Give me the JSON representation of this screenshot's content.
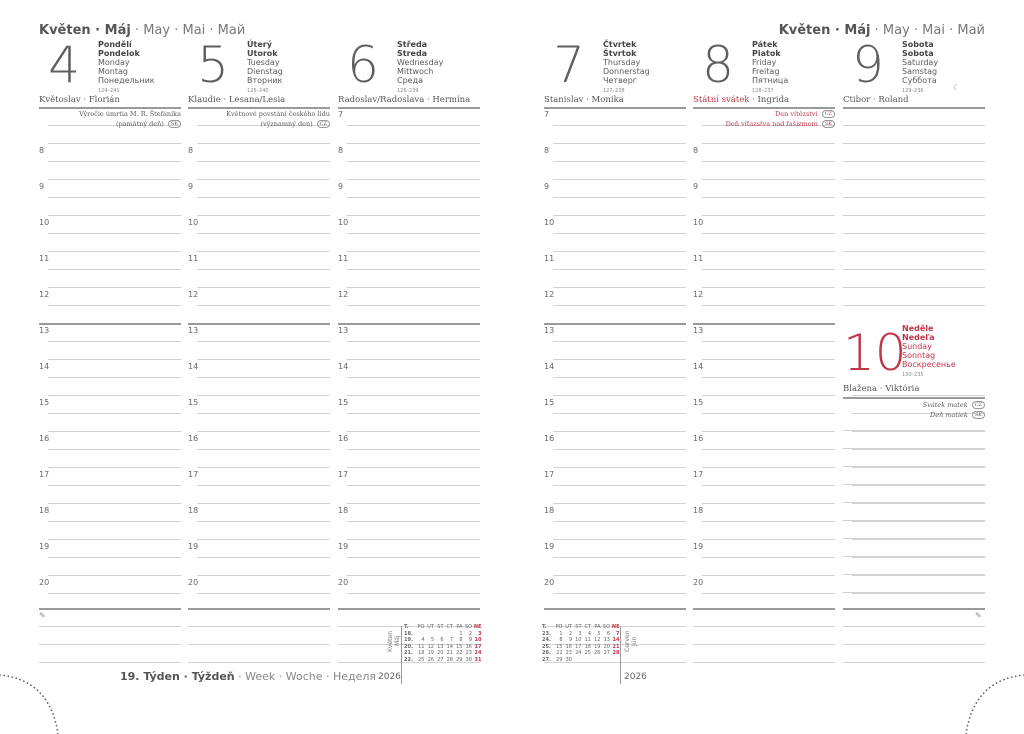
{
  "header": {
    "month_bold": "Květen · Máj",
    "month_rest": " · May · Mai · Май"
  },
  "week": {
    "bold": "19. Týden · Týždeň",
    "rest": " · Week · Woche · Неделя"
  },
  "colors": {
    "text": "#5a5a5a",
    "holiday": "#c0354a",
    "line": "#d2d2d2"
  },
  "days": [
    {
      "num": "4",
      "cz": "Pondělí",
      "sk": "Pondelok",
      "en": "Monday",
      "de": "Montag",
      "ru": "Понедельник",
      "count": "124–241",
      "nameday": "Květoslav · Florián",
      "holiday": false,
      "events": [
        {
          "text": "Výročie úmrtia M. R. Štefánika",
          "badge": ""
        },
        {
          "text": "(pamätný deň)",
          "badge": "SK"
        }
      ],
      "hours": [
        "",
        "8",
        "9",
        "10",
        "11",
        "12",
        "13",
        "14",
        "15",
        "16",
        "17",
        "18",
        "19",
        "20"
      ]
    },
    {
      "num": "5",
      "cz": "Úterý",
      "sk": "Utorok",
      "en": "Tuesday",
      "de": "Dienstag",
      "ru": "Вторник",
      "count": "125–240",
      "nameday": "Klaudie · Lesana/Lesia",
      "holiday": false,
      "events": [
        {
          "text": "Květnové povstání českého lidu",
          "badge": ""
        },
        {
          "text": "(významný den)",
          "badge": "CZ"
        }
      ],
      "hours": [
        "",
        "8",
        "9",
        "10",
        "11",
        "12",
        "13",
        "14",
        "15",
        "16",
        "17",
        "18",
        "19",
        "20"
      ]
    },
    {
      "num": "6",
      "cz": "Středa",
      "sk": "Streda",
      "en": "Wednesday",
      "de": "Mittwoch",
      "ru": "Среда",
      "count": "126–239",
      "nameday": "Radoslav/Radoslava · Hermína",
      "holiday": false,
      "events": [],
      "hours": [
        "7",
        "8",
        "9",
        "10",
        "11",
        "12",
        "13",
        "14",
        "15",
        "16",
        "17",
        "18",
        "19",
        "20"
      ]
    },
    {
      "num": "7",
      "cz": "Čtvrtek",
      "sk": "Štvrtok",
      "en": "Thursday",
      "de": "Donnerstag",
      "ru": "Четверг",
      "count": "127–238",
      "nameday": "Stanislav · Monika",
      "holiday": false,
      "events": [],
      "hours": [
        "7",
        "8",
        "9",
        "10",
        "11",
        "12",
        "13",
        "14",
        "15",
        "16",
        "17",
        "18",
        "19",
        "20"
      ]
    },
    {
      "num": "8",
      "cz": "Pátek",
      "sk": "Piatok",
      "en": "Friday",
      "de": "Freitag",
      "ru": "Пятница",
      "count": "128–237",
      "nameday_red": "Státní svátek",
      "nameday": " · Ingrida",
      "holiday": false,
      "events": [
        {
          "text": "Den vítězství",
          "badge": "CZ"
        },
        {
          "text": "Deň víťazstva nad fašizmom",
          "badge": "SK"
        }
      ],
      "hours": [
        "",
        "8",
        "9",
        "10",
        "11",
        "12",
        "13",
        "14",
        "15",
        "16",
        "17",
        "18",
        "19",
        "20"
      ]
    },
    {
      "num": "9",
      "cz": "Sobota",
      "sk": "Sobota",
      "en": "Saturday",
      "de": "Samstag",
      "ru": "Суббота",
      "count": "129–236",
      "nameday": "Ctibor · Roland",
      "holiday": false,
      "events": [],
      "hours": [],
      "moon": "☾"
    }
  ],
  "sunday": {
    "num": "10",
    "cz": "Neděle",
    "sk": "Nedeľa",
    "en": "Sunday",
    "de": "Sonntag",
    "ru": "Воскресенье",
    "count": "130–235",
    "nameday": "Blažena · Viktória",
    "events": [
      {
        "text": "Svátek matek",
        "badge": "CZ"
      },
      {
        "text": "Deň matiek",
        "badge": "SK"
      }
    ]
  },
  "mini_calendars": [
    {
      "month": "Květen",
      "month2": "Máj",
      "year": "2026",
      "head": [
        "T.",
        "PO",
        "ÚT",
        "ST",
        "ČT",
        "PÁ",
        "SO",
        "NE"
      ],
      "rows": [
        [
          "18.",
          "",
          "",
          "",
          "",
          "1",
          "2",
          "3"
        ],
        [
          "19.",
          "4",
          "5",
          "6",
          "7",
          "8",
          "9",
          "10"
        ],
        [
          "20.",
          "11",
          "12",
          "13",
          "14",
          "15",
          "16",
          "17"
        ],
        [
          "21.",
          "18",
          "19",
          "20",
          "21",
          "22",
          "23",
          "24"
        ],
        [
          "22.",
          "25",
          "26",
          "27",
          "28",
          "29",
          "30",
          "31"
        ]
      ]
    },
    {
      "month": "Červen",
      "month2": "Jún",
      "year": "2026",
      "head": [
        "T.",
        "PO",
        "ÚT",
        "ST",
        "ČT",
        "PÁ",
        "SO",
        "NE"
      ],
      "rows": [
        [
          "23.",
          "1",
          "2",
          "3",
          "4",
          "5",
          "6",
          "7"
        ],
        [
          "24.",
          "8",
          "9",
          "10",
          "11",
          "12",
          "13",
          "14"
        ],
        [
          "25.",
          "15",
          "16",
          "17",
          "18",
          "19",
          "20",
          "21"
        ],
        [
          "26.",
          "22",
          "23",
          "24",
          "25",
          "26",
          "27",
          "28"
        ],
        [
          "27.",
          "29",
          "30",
          "",
          "",
          "",
          "",
          ""
        ]
      ]
    }
  ]
}
